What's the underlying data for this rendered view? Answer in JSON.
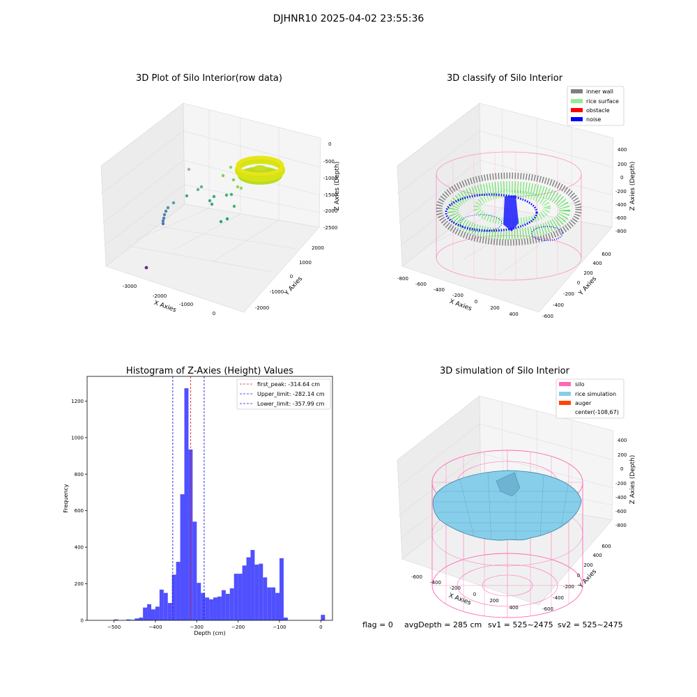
{
  "figure": {
    "suptitle": "DJHNR10 2025-04-02 23:55:36",
    "status": {
      "flag": "flag = 0",
      "avg_depth": "avgDepth = 285 cm",
      "sv1": "sv1 = 525~2475",
      "sv2": "sv2 = 525~2475"
    }
  },
  "colors": {
    "hist_bar": "#5050ff",
    "first_peak": "#e02020",
    "limits": "#1a1ae0",
    "inner_wall": "#808080",
    "rice_surface": "#90ee90",
    "obstacle": "#ff0000",
    "noise": "#0000ff",
    "silo": "#ff69b4",
    "rice_simulation": "#87ceeb",
    "auger": "#ff4500"
  },
  "chart_data": [
    {
      "type": "scatter3d",
      "title": "3D Plot of Silo Interior(row data)",
      "xlabel": "X Axies",
      "ylabel": "Y Axies",
      "zlabel": "Z Axies (Depth)",
      "xticks": [
        "-3000",
        "-2000",
        "-1000",
        "0"
      ],
      "yticks": [
        "-2000",
        "-1000",
        "0",
        "1000",
        "2000"
      ],
      "zticks": [
        "0",
        "-500",
        "-1000",
        "-1500",
        "-2000",
        "-2500"
      ]
    },
    {
      "type": "scatter3d",
      "title": "3D classify of Silo Interior",
      "xlabel": "X Axies",
      "ylabel": "Y Axies",
      "zlabel": "Z Axies (Depth)",
      "xticks": [
        "-800",
        "-600",
        "-400",
        "-200",
        "0",
        "200",
        "400"
      ],
      "yticks": [
        "-600",
        "-400",
        "-200",
        "0",
        "200",
        "400",
        "600"
      ],
      "zticks": [
        "400",
        "200",
        "0",
        "-200",
        "-400",
        "-600",
        "-800"
      ],
      "legend": [
        "inner wall",
        "rice surface",
        "obstacle",
        "noise"
      ]
    },
    {
      "type": "bar",
      "title": "Histogram of Z-Axies (Height) Values",
      "xlabel": "Depth (cm)",
      "ylabel": "Frequency",
      "xlim": [
        -565,
        28
      ],
      "ylim": [
        0,
        1335
      ],
      "bin_width": 10,
      "xticks": [
        -500,
        -400,
        -300,
        -200,
        -100,
        0
      ],
      "yticks": [
        0,
        200,
        400,
        600,
        800,
        1000,
        1200
      ],
      "bins": [
        {
          "x": -500,
          "y": 5
        },
        {
          "x": -470,
          "y": 5
        },
        {
          "x": -460,
          "y": 3
        },
        {
          "x": -450,
          "y": 10
        },
        {
          "x": -440,
          "y": 15
        },
        {
          "x": -430,
          "y": 70
        },
        {
          "x": -420,
          "y": 88
        },
        {
          "x": -410,
          "y": 60
        },
        {
          "x": -400,
          "y": 75
        },
        {
          "x": -390,
          "y": 168
        },
        {
          "x": -380,
          "y": 150
        },
        {
          "x": -370,
          "y": 95
        },
        {
          "x": -360,
          "y": 250
        },
        {
          "x": -350,
          "y": 320
        },
        {
          "x": -340,
          "y": 690
        },
        {
          "x": -330,
          "y": 1270
        },
        {
          "x": -320,
          "y": 935
        },
        {
          "x": -310,
          "y": 540
        },
        {
          "x": -300,
          "y": 205
        },
        {
          "x": -290,
          "y": 150
        },
        {
          "x": -280,
          "y": 125
        },
        {
          "x": -270,
          "y": 115
        },
        {
          "x": -260,
          "y": 125
        },
        {
          "x": -250,
          "y": 130
        },
        {
          "x": -240,
          "y": 165
        },
        {
          "x": -230,
          "y": 145
        },
        {
          "x": -220,
          "y": 175
        },
        {
          "x": -210,
          "y": 255
        },
        {
          "x": -200,
          "y": 255
        },
        {
          "x": -190,
          "y": 300
        },
        {
          "x": -180,
          "y": 345
        },
        {
          "x": -170,
          "y": 385
        },
        {
          "x": -160,
          "y": 305
        },
        {
          "x": -150,
          "y": 310
        },
        {
          "x": -140,
          "y": 235
        },
        {
          "x": -130,
          "y": 180
        },
        {
          "x": -120,
          "y": 180
        },
        {
          "x": -110,
          "y": 150
        },
        {
          "x": -100,
          "y": 340
        },
        {
          "x": -90,
          "y": 15
        },
        {
          "x": 0,
          "y": 30
        }
      ],
      "vlines": [
        {
          "label": "first_peak: -314.64 cm",
          "x": -314.64,
          "color_key": "first_peak"
        },
        {
          "label": "Upper_limit: -282.14 cm",
          "x": -282.14,
          "color_key": "limits"
        },
        {
          "label": "Lower_limit: -357.99 cm",
          "x": -357.99,
          "color_key": "limits"
        }
      ]
    },
    {
      "type": "surface3d",
      "title": "3D simulation of Silo Interior",
      "xlabel": "X Axies",
      "ylabel": "Y Axies",
      "zlabel": "Z Axies (Depth)",
      "xticks": [
        "-600",
        "-400",
        "-200",
        "0",
        "200",
        "400"
      ],
      "yticks": [
        "-600",
        "-400",
        "-200",
        "0",
        "200",
        "400",
        "600"
      ],
      "zticks": [
        "400",
        "200",
        "0",
        "-200",
        "-400",
        "-600",
        "-800"
      ],
      "legend": [
        "silo",
        "rice simulation",
        "auger",
        "center(-108,67)"
      ]
    }
  ]
}
